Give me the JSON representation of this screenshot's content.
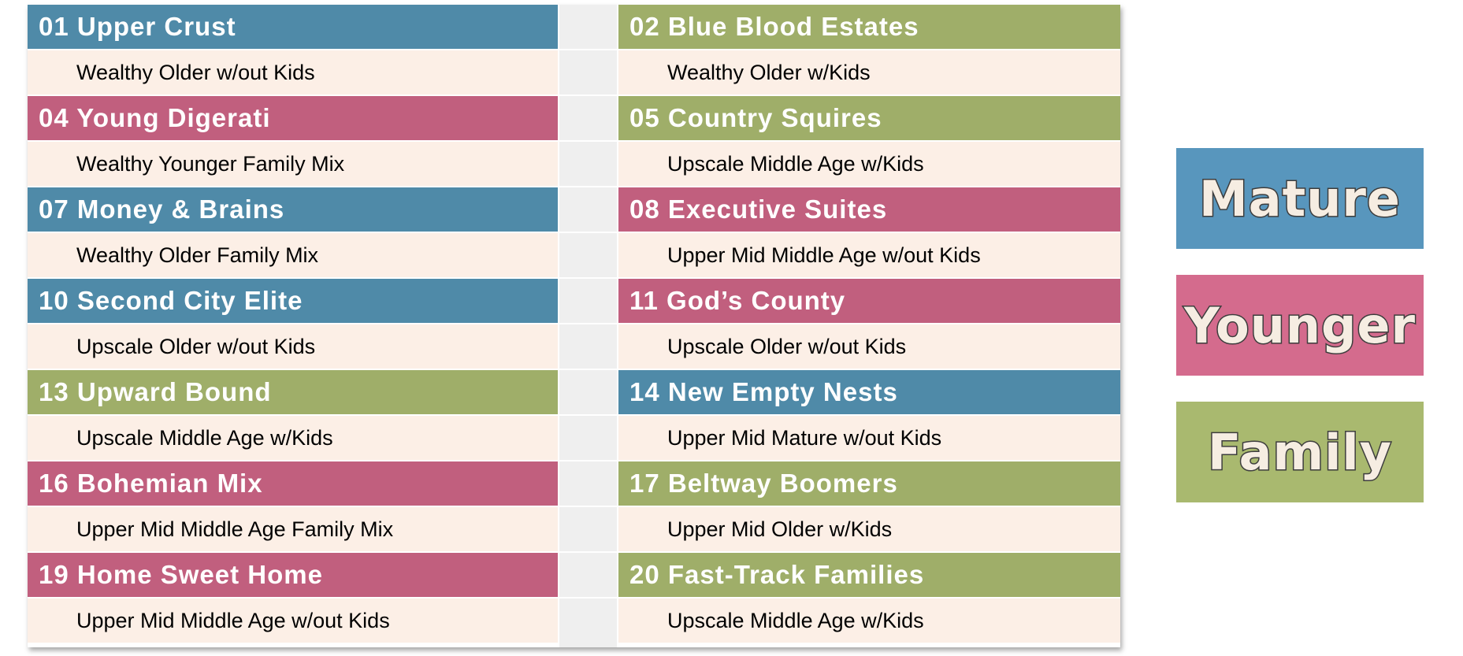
{
  "colors": {
    "mature": "#4f8aa8",
    "younger": "#c15f7e",
    "family": "#9fae69",
    "description_bg": "#fcefe6",
    "gap_bg": "#efefef"
  },
  "segments_left": [
    {
      "title": "01 Upper Crust",
      "description": "Wealthy Older w/out Kids",
      "category": "mature"
    },
    {
      "title": "04 Young Digerati",
      "description": "Wealthy Younger Family Mix",
      "category": "younger"
    },
    {
      "title": "07 Money & Brains",
      "description": "Wealthy Older Family Mix",
      "category": "mature"
    },
    {
      "title": "10 Second City Elite",
      "description": "Upscale Older w/out Kids",
      "category": "mature"
    },
    {
      "title": "13 Upward Bound",
      "description": "Upscale Middle Age w/Kids",
      "category": "family"
    },
    {
      "title": "16 Bohemian Mix",
      "description": "Upper Mid Middle Age Family Mix",
      "category": "younger"
    },
    {
      "title": "19 Home Sweet Home",
      "description": "Upper Mid Middle Age w/out Kids",
      "category": "younger"
    }
  ],
  "segments_right": [
    {
      "title": "02 Blue Blood Estates",
      "description": "Wealthy Older w/Kids",
      "category": "family"
    },
    {
      "title": "05 Country Squires",
      "description": "Upscale Middle Age w/Kids",
      "category": "family"
    },
    {
      "title": "08 Executive Suites",
      "description": "Upper Mid Middle Age w/out Kids",
      "category": "younger"
    },
    {
      "title": "11 God’s County",
      "description": "Upscale Older w/out Kids",
      "category": "younger"
    },
    {
      "title": "14 New Empty Nests",
      "description": "Upper Mid Mature w/out Kids",
      "category": "mature"
    },
    {
      "title": "17 Beltway Boomers",
      "description": "Upper Mid Older w/Kids",
      "category": "family"
    },
    {
      "title": "20 Fast-Track Families",
      "description": "Upscale Middle Age w/Kids",
      "category": "family"
    }
  ],
  "legend": {
    "mature": "Mature",
    "younger": "Younger",
    "family": "Family"
  }
}
